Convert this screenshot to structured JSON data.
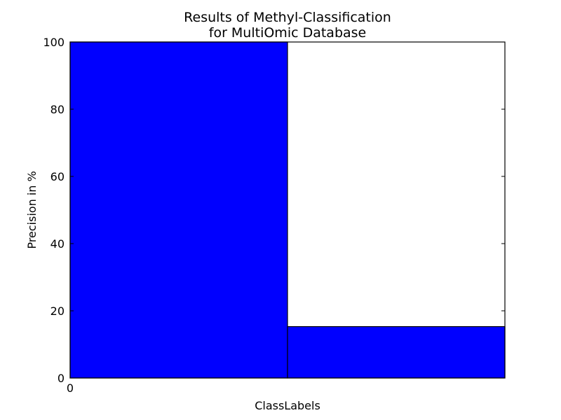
{
  "chart_data": {
    "type": "bar",
    "title_lines": [
      "Results of Methyl-Classification",
      "for MultiOmic Database"
    ],
    "xlabel": "ClassLabels",
    "ylabel": "Precision in %",
    "ylim": [
      0,
      100
    ],
    "xlim": [
      0,
      2
    ],
    "yticks": [
      0,
      20,
      40,
      60,
      80,
      100
    ],
    "xticks": [
      0
    ],
    "grid": false,
    "legend": "none",
    "bars": [
      {
        "x": 0,
        "width": 1,
        "value": 100
      },
      {
        "x": 1,
        "width": 1,
        "value": 15.3
      }
    ],
    "colors": {
      "bar": "#0000ff",
      "edge": "#000000"
    }
  }
}
